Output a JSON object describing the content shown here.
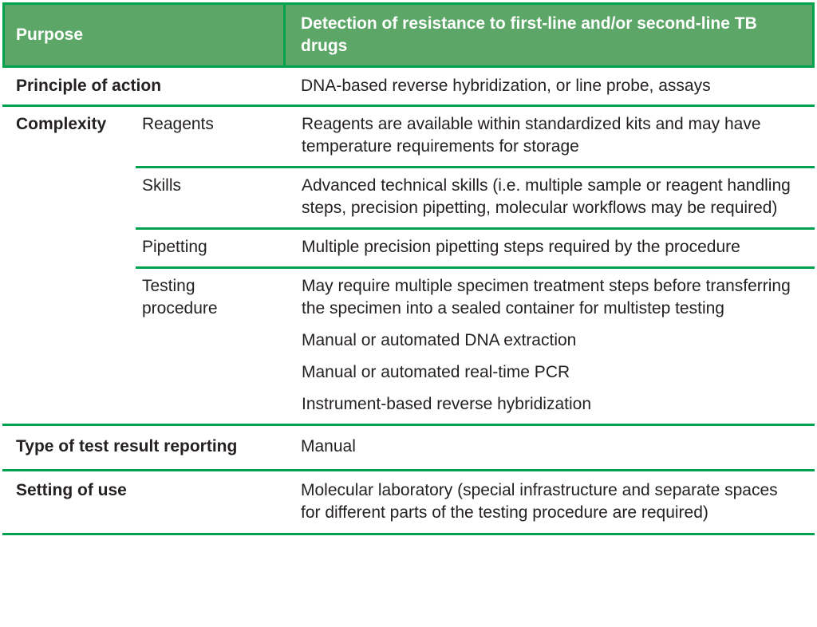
{
  "colors": {
    "header_bg": "#5ca668",
    "rule_green": "#00a24f",
    "header_text": "#ffffff",
    "body_text": "#252122",
    "page_bg": "#ffffff"
  },
  "table": {
    "header": {
      "purpose_label": "Purpose",
      "purpose_value": "Detection of resistance to first-line and/or second-line TB drugs"
    },
    "principle": {
      "label": "Principle of action",
      "value": "DNA-based reverse hybridization, or line probe, assays"
    },
    "complexity": {
      "label": "Complexity",
      "subrows": [
        {
          "label": "Reagents",
          "value": "Reagents are available within standardized kits and may have temperature requirements for storage"
        },
        {
          "label": "Skills",
          "value": "Advanced technical skills (i.e. multiple sample or reagent handling steps, precision pipetting, molecular workflows may be required)"
        },
        {
          "label": "Pipetting",
          "value": "Multiple precision pipetting steps required by the procedure"
        },
        {
          "label": "Testing procedure",
          "paragraphs": [
            "May require multiple specimen treatment steps before transferring the specimen into a sealed container for multistep testing",
            "Manual or automated DNA extraction",
            "Manual or automated real-time PCR",
            "Instrument-based reverse hybridization"
          ]
        }
      ]
    },
    "reporting": {
      "label": "Type of test result reporting",
      "value": "Manual"
    },
    "setting": {
      "label": "Setting of use",
      "value": "Molecular laboratory (special infrastructure and separate spaces for different parts of the testing procedure are required)"
    }
  }
}
